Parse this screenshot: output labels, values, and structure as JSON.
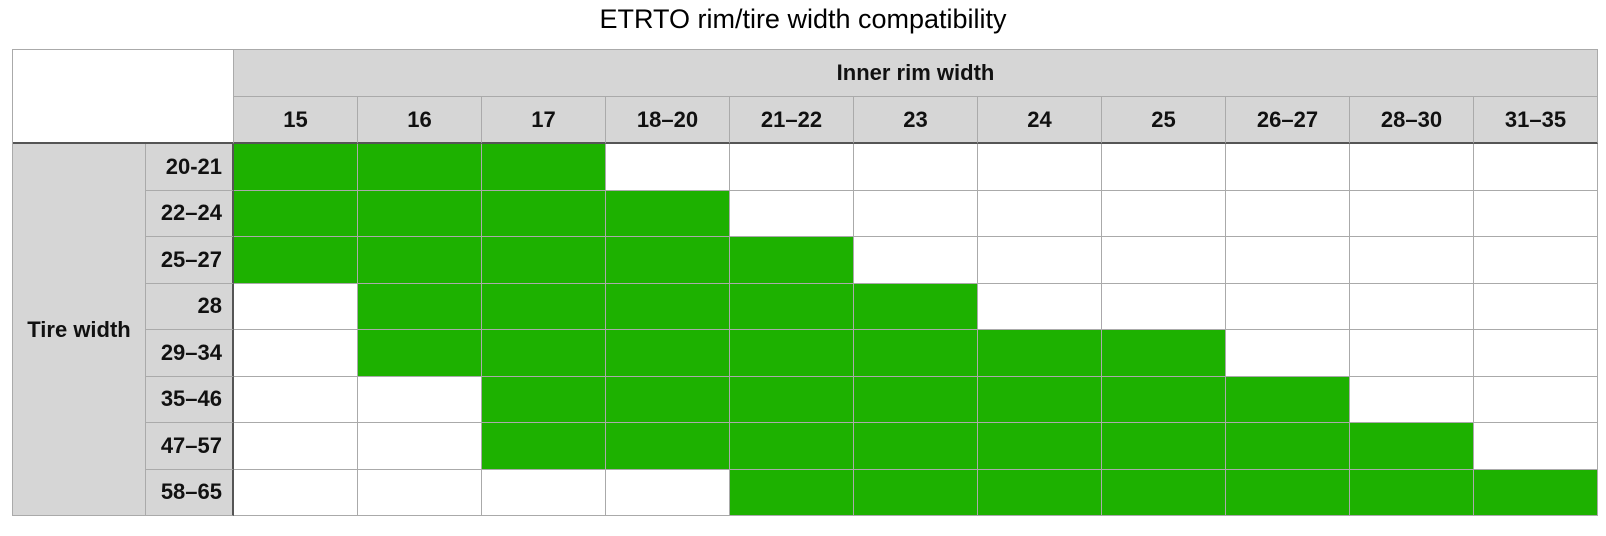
{
  "title": "ETRTO rim/tire width compatibility",
  "table": {
    "column_group": "Inner rim width",
    "row_group": "Tire width",
    "columns": [
      "15",
      "16",
      "17",
      "18–20",
      "21–22",
      "23",
      "24",
      "25",
      "26–27",
      "28–30",
      "31–35"
    ],
    "compatible_color": "#1db100",
    "rows": [
      {
        "label": "20-21",
        "compatible": [
          true,
          true,
          true,
          false,
          false,
          false,
          false,
          false,
          false,
          false,
          false
        ]
      },
      {
        "label": "22–24",
        "compatible": [
          true,
          true,
          true,
          true,
          false,
          false,
          false,
          false,
          false,
          false,
          false
        ]
      },
      {
        "label": "25–27",
        "compatible": [
          true,
          true,
          true,
          true,
          true,
          false,
          false,
          false,
          false,
          false,
          false
        ]
      },
      {
        "label": "28",
        "compatible": [
          false,
          true,
          true,
          true,
          true,
          true,
          false,
          false,
          false,
          false,
          false
        ]
      },
      {
        "label": "29–34",
        "compatible": [
          false,
          true,
          true,
          true,
          true,
          true,
          true,
          true,
          false,
          false,
          false
        ]
      },
      {
        "label": "35–46",
        "compatible": [
          false,
          false,
          true,
          true,
          true,
          true,
          true,
          true,
          true,
          false,
          false
        ]
      },
      {
        "label": "47–57",
        "compatible": [
          false,
          false,
          true,
          true,
          true,
          true,
          true,
          true,
          true,
          true,
          false
        ]
      },
      {
        "label": "58–65",
        "compatible": [
          false,
          false,
          false,
          false,
          true,
          true,
          true,
          true,
          true,
          true,
          true
        ]
      }
    ]
  }
}
